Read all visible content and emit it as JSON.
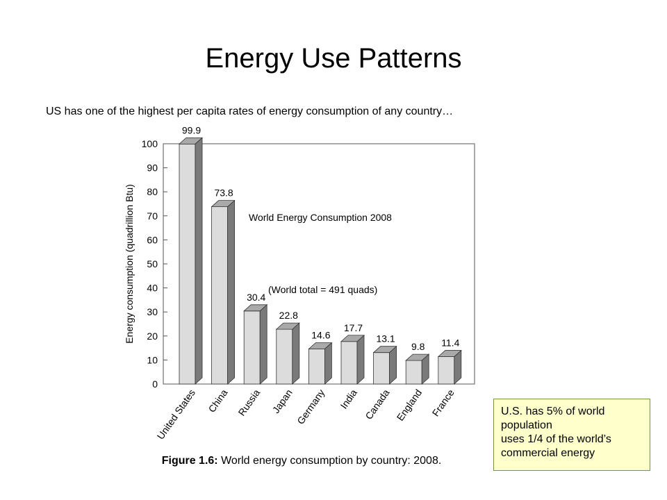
{
  "slide": {
    "title": "Energy Use Patterns",
    "subtitle": "US has one of the highest per capita rates of energy consumption of any country…"
  },
  "caption": {
    "label": "Figure 1.6:",
    "text": " World energy consumption by country: 2008."
  },
  "note": {
    "lines": [
      "U.S. has 5% of world",
      "population",
      "uses 1/4 of the world’s",
      "commercial energy"
    ]
  },
  "colors": {
    "bar_front": "#dcdcdc",
    "bar_top": "#a9a9a9",
    "bar_side": "#7a7a7a",
    "note_bg": "#ffffcc",
    "note_border": "#6b9b3a"
  },
  "chart_data": {
    "type": "bar",
    "title": "World Energy Consumption 2008",
    "annotation": "(World total = 491 quads)",
    "ylabel": "Energy consumption (quadrillion Btu)",
    "xlabel": "",
    "ylim": [
      0,
      100
    ],
    "yticks": [
      0,
      10,
      20,
      30,
      40,
      50,
      60,
      70,
      80,
      90,
      100
    ],
    "categories": [
      "United States",
      "China",
      "Russia",
      "Japan",
      "Germany",
      "India",
      "Canada",
      "England",
      "France"
    ],
    "values": [
      99.9,
      73.8,
      30.4,
      22.8,
      14.6,
      17.7,
      13.1,
      9.8,
      11.4
    ],
    "value_labels": [
      "99.9",
      "73.8",
      "30.4",
      "22.8",
      "14.6",
      "17.7",
      "13.1",
      "9.8",
      "11.4"
    ],
    "grid": false,
    "style": "3d"
  }
}
